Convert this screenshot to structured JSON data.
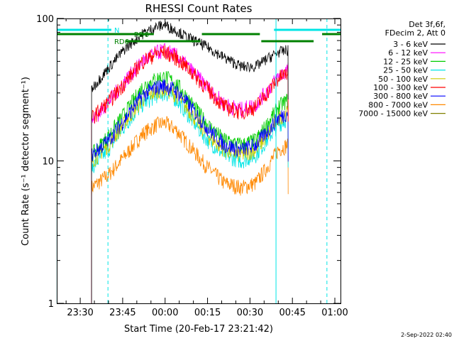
{
  "chart_data": {
    "type": "line",
    "title": "RHESSI Count Rates",
    "xlabel": "Start Time (20-Feb-17 23:21:42)",
    "ylabel": "Count Rate (s⁻¹ detector segment⁻¹)",
    "ylog": true,
    "ylim": [
      1,
      100
    ],
    "xlim_minutes": [
      -38.3,
      62.0
    ],
    "x_ticks": [
      {
        "label": "23:30",
        "m": -30
      },
      {
        "label": "23:45",
        "m": -15
      },
      {
        "label": "00:00",
        "m": 0
      },
      {
        "label": "00:15",
        "m": 15
      },
      {
        "label": "00:30",
        "m": 30
      },
      {
        "label": "00:45",
        "m": 45
      },
      {
        "label": "01:00",
        "m": 60
      }
    ],
    "y_ticks": [
      {
        "label": "1",
        "v": 1
      },
      {
        "label": "10",
        "v": 10
      },
      {
        "label": "100",
        "v": 100
      }
    ],
    "legend_header": [
      "Det 3f,6f,",
      "FDecim 2, Att 0"
    ],
    "legend_position": "top-right",
    "timestamp": "2-Sep-2022 02:40",
    "data_start_m": -26,
    "data_end_m": 43.5,
    "series": [
      {
        "name": "3 - 6 keV",
        "color": "#000000",
        "values": [
          {
            "m": -26,
            "v": 32
          },
          {
            "m": -20,
            "v": 45
          },
          {
            "m": -14,
            "v": 62
          },
          {
            "m": -8,
            "v": 78
          },
          {
            "m": -3,
            "v": 88
          },
          {
            "m": 0,
            "v": 90
          },
          {
            "m": 4,
            "v": 82
          },
          {
            "m": 9,
            "v": 72
          },
          {
            "m": 15,
            "v": 63
          },
          {
            "m": 21,
            "v": 53
          },
          {
            "m": 27,
            "v": 46
          },
          {
            "m": 32,
            "v": 46
          },
          {
            "m": 36,
            "v": 52
          },
          {
            "m": 40,
            "v": 58
          },
          {
            "m": 43.5,
            "v": 60
          }
        ]
      },
      {
        "name": "6 - 12 keV",
        "color": "#ff00ff",
        "values": [
          {
            "m": -26,
            "v": 19
          },
          {
            "m": -20,
            "v": 26
          },
          {
            "m": -14,
            "v": 37
          },
          {
            "m": -8,
            "v": 50
          },
          {
            "m": -3,
            "v": 58
          },
          {
            "m": 0,
            "v": 60
          },
          {
            "m": 4,
            "v": 55
          },
          {
            "m": 9,
            "v": 44
          },
          {
            "m": 15,
            "v": 33
          },
          {
            "m": 21,
            "v": 25
          },
          {
            "m": 27,
            "v": 23
          },
          {
            "m": 32,
            "v": 25
          },
          {
            "m": 36,
            "v": 31
          },
          {
            "m": 40,
            "v": 39
          },
          {
            "m": 43.5,
            "v": 44
          }
        ]
      },
      {
        "name": "12 - 25 keV",
        "color": "#00cc00",
        "values": [
          {
            "m": -26,
            "v": 11
          },
          {
            "m": -20,
            "v": 15
          },
          {
            "m": -14,
            "v": 22
          },
          {
            "m": -8,
            "v": 33
          },
          {
            "m": -3,
            "v": 38
          },
          {
            "m": 0,
            "v": 39
          },
          {
            "m": 4,
            "v": 35
          },
          {
            "m": 9,
            "v": 26
          },
          {
            "m": 15,
            "v": 18
          },
          {
            "m": 21,
            "v": 14
          },
          {
            "m": 27,
            "v": 13
          },
          {
            "m": 32,
            "v": 14
          },
          {
            "m": 36,
            "v": 18
          },
          {
            "m": 40,
            "v": 24
          },
          {
            "m": 43.5,
            "v": 27
          }
        ]
      },
      {
        "name": "25 - 50 keV",
        "color": "#00e5e5",
        "values": [
          {
            "m": -26,
            "v": 9
          },
          {
            "m": -20,
            "v": 12
          },
          {
            "m": -14,
            "v": 18
          },
          {
            "m": -8,
            "v": 25
          },
          {
            "m": -3,
            "v": 29
          },
          {
            "m": 0,
            "v": 30
          },
          {
            "m": 4,
            "v": 27
          },
          {
            "m": 9,
            "v": 20
          },
          {
            "m": 15,
            "v": 14
          },
          {
            "m": 21,
            "v": 11
          },
          {
            "m": 27,
            "v": 10
          },
          {
            "m": 32,
            "v": 11
          },
          {
            "m": 36,
            "v": 14
          },
          {
            "m": 40,
            "v": 18
          },
          {
            "m": 43.5,
            "v": 20
          }
        ]
      },
      {
        "name": "50 - 100 keV",
        "color": "#cccc00",
        "values": [
          {
            "m": -26,
            "v": 10
          },
          {
            "m": -20,
            "v": 13
          },
          {
            "m": -14,
            "v": 19
          },
          {
            "m": -8,
            "v": 27
          },
          {
            "m": -3,
            "v": 31
          },
          {
            "m": 0,
            "v": 32
          },
          {
            "m": 4,
            "v": 29
          },
          {
            "m": 9,
            "v": 22
          },
          {
            "m": 15,
            "v": 15
          },
          {
            "m": 21,
            "v": 12
          },
          {
            "m": 27,
            "v": 11
          },
          {
            "m": 32,
            "v": 12
          },
          {
            "m": 36,
            "v": 15
          },
          {
            "m": 40,
            "v": 20
          },
          {
            "m": 43.5,
            "v": 22
          }
        ]
      },
      {
        "name": "100 - 300 keV",
        "color": "#ff0000",
        "values": [
          {
            "m": -26,
            "v": 20
          },
          {
            "m": -20,
            "v": 26
          },
          {
            "m": -14,
            "v": 36
          },
          {
            "m": -8,
            "v": 50
          },
          {
            "m": -3,
            "v": 57
          },
          {
            "m": 0,
            "v": 58
          },
          {
            "m": 4,
            "v": 53
          },
          {
            "m": 9,
            "v": 43
          },
          {
            "m": 15,
            "v": 32
          },
          {
            "m": 21,
            "v": 24
          },
          {
            "m": 27,
            "v": 22
          },
          {
            "m": 32,
            "v": 24
          },
          {
            "m": 36,
            "v": 30
          },
          {
            "m": 40,
            "v": 38
          },
          {
            "m": 43.5,
            "v": 42
          }
        ]
      },
      {
        "name": "300 - 800 keV",
        "color": "#0000ff",
        "values": [
          {
            "m": -26,
            "v": 11
          },
          {
            "m": -20,
            "v": 14
          },
          {
            "m": -14,
            "v": 20
          },
          {
            "m": -8,
            "v": 29
          },
          {
            "m": -3,
            "v": 33
          },
          {
            "m": 0,
            "v": 34
          },
          {
            "m": 4,
            "v": 31
          },
          {
            "m": 9,
            "v": 24
          },
          {
            "m": 15,
            "v": 17
          },
          {
            "m": 21,
            "v": 13
          },
          {
            "m": 27,
            "v": 12
          },
          {
            "m": 32,
            "v": 13
          },
          {
            "m": 36,
            "v": 16
          },
          {
            "m": 40,
            "v": 20
          },
          {
            "m": 43.5,
            "v": 22
          }
        ]
      },
      {
        "name": "800 - 7000 keV",
        "color": "#ff8800",
        "values": [
          {
            "m": -26,
            "v": 6.5
          },
          {
            "m": -20,
            "v": 8
          },
          {
            "m": -14,
            "v": 11
          },
          {
            "m": -8,
            "v": 15.5
          },
          {
            "m": -3,
            "v": 18
          },
          {
            "m": 0,
            "v": 18.5
          },
          {
            "m": 4,
            "v": 16.5
          },
          {
            "m": 9,
            "v": 12.5
          },
          {
            "m": 15,
            "v": 9
          },
          {
            "m": 21,
            "v": 7
          },
          {
            "m": 27,
            "v": 6.5
          },
          {
            "m": 32,
            "v": 7
          },
          {
            "m": 36,
            "v": 9
          },
          {
            "m": 40,
            "v": 12
          },
          {
            "m": 43.5,
            "v": 13
          }
        ]
      },
      {
        "name": "7000 - 15000 keV",
        "color": "#808000",
        "values": []
      }
    ],
    "attenuator_bars": [
      {
        "label": "N",
        "color": "#00e5e5",
        "row": 0,
        "start_m": -38.3,
        "end_m": -19,
        "label_m": -18
      },
      {
        "label": "",
        "color": "#00e5e5",
        "row": 0,
        "start_m": 38.5,
        "end_m": 62,
        "label_m": null
      },
      {
        "label": "RD6",
        "color": "#008000",
        "row": 1,
        "start_m": -38.3,
        "end_m": -4,
        "label_m": -11
      },
      {
        "label": "RD6",
        "color": "#008000",
        "row": 2,
        "start_m": -14,
        "end_m": 12.5,
        "label_m": -18
      },
      {
        "label": "",
        "color": "#008000",
        "row": 1,
        "start_m": 13,
        "end_m": 33.5,
        "label_m": null
      },
      {
        "label": "",
        "color": "#008000",
        "row": 2,
        "start_m": 34,
        "end_m": 52.5,
        "label_m": null
      },
      {
        "label": "",
        "color": "#008000",
        "row": 1,
        "start_m": 55.5,
        "end_m": 62,
        "label_m": null
      }
    ],
    "vlines": [
      {
        "m": -38.2,
        "style": "solid",
        "color": "#00e5e5"
      },
      {
        "m": -20.2,
        "style": "dashed",
        "color": "#00e5e5"
      },
      {
        "m": 39.2,
        "style": "solid",
        "color": "#00e5e5"
      },
      {
        "m": 57.2,
        "style": "dashed",
        "color": "#00e5e5"
      }
    ]
  }
}
